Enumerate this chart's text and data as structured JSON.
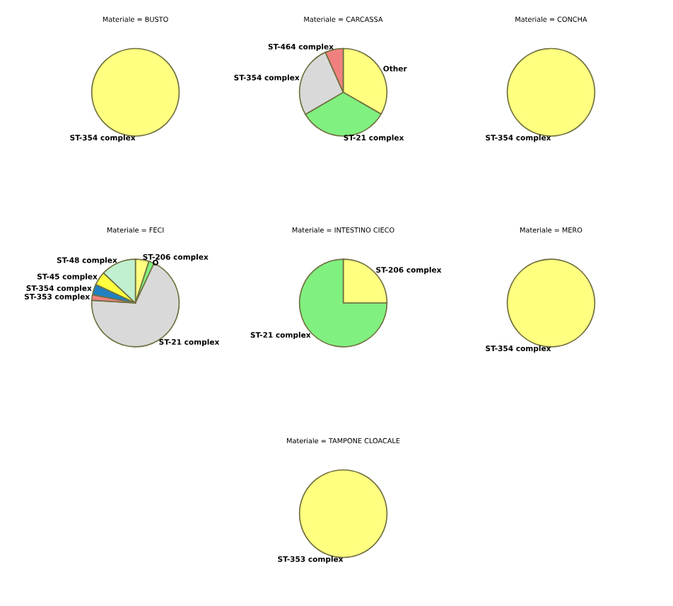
{
  "chart_data": [
    {
      "type": "pie",
      "title": "Materiale = BUSTO",
      "categories": [
        "ST-354 complex"
      ],
      "values": [
        100
      ],
      "colors": [
        "#ffff80"
      ]
    },
    {
      "type": "pie",
      "title": "Materiale = CARCASSA",
      "categories": [
        "Other",
        "ST-21 complex",
        "ST-354 complex",
        "ST-464 complex"
      ],
      "values": [
        33.3,
        33.3,
        26.7,
        6.7
      ],
      "colors": [
        "#ffff80",
        "#80f080",
        "#d9d9d9",
        "#f08080"
      ]
    },
    {
      "type": "pie",
      "title": "Materiale = CONCHA",
      "categories": [
        "ST-354 complex"
      ],
      "values": [
        100
      ],
      "colors": [
        "#ffff80"
      ]
    },
    {
      "type": "pie",
      "title": "Materiale = FECI",
      "categories": [
        "ST-206 complex",
        "O",
        "ST-21 complex",
        "ST-353 complex",
        "ST-354 complex",
        "ST-45 complex",
        "ST-48 complex"
      ],
      "values": [
        5,
        2,
        69,
        2,
        4,
        5,
        13
      ],
      "colors": [
        "#ffff80",
        "#80f080",
        "#d9d9d9",
        "#f08080",
        "#2080c0",
        "#ffff40",
        "#c0f0d0"
      ]
    },
    {
      "type": "pie",
      "title": "Materiale = INTESTINO CIECO",
      "categories": [
        "ST-206 complex",
        "ST-21 complex"
      ],
      "values": [
        25,
        75
      ],
      "colors": [
        "#ffff80",
        "#80f080"
      ]
    },
    {
      "type": "pie",
      "title": "Materiale = MERO",
      "categories": [
        "ST-354 complex"
      ],
      "values": [
        100
      ],
      "colors": [
        "#ffff80"
      ]
    },
    {
      "type": "pie",
      "title": "Materiale = TAMPONE CLOACALE",
      "categories": [
        "ST-353 complex"
      ],
      "values": [
        100
      ],
      "colors": [
        "#ffff80"
      ]
    }
  ]
}
